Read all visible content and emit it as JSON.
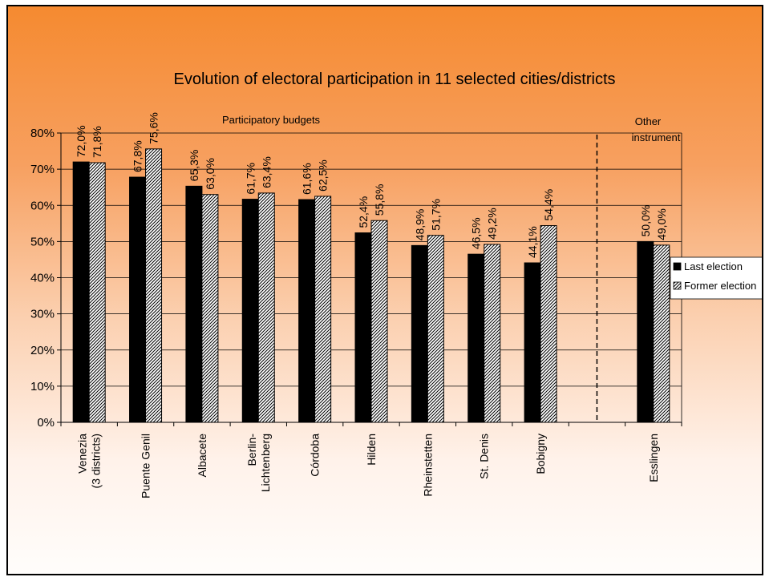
{
  "chart_data": {
    "type": "bar",
    "title": "Evolution of electoral participation in 11 selected cities/districts",
    "categories": [
      "Venezia\n(3 districts)",
      "Puente Genil",
      "Albacete",
      "Berlin-\nLichtenberg",
      "Córdoba",
      "Hilden",
      "Rheinstetten",
      "St. Denis",
      "Bobigny",
      "",
      "Esslingen"
    ],
    "series": [
      {
        "name": "Last election",
        "values": [
          72.0,
          67.8,
          65.3,
          61.7,
          61.6,
          52.4,
          48.9,
          46.5,
          44.1,
          null,
          50.0
        ],
        "labels": [
          "72,0%",
          "67,8%",
          "65,3%",
          "61,7%",
          "61,6%",
          "52,4%",
          "48,9%",
          "46,5%",
          "44,1%",
          "",
          "50,0%"
        ]
      },
      {
        "name": "Former election",
        "values": [
          71.8,
          75.6,
          63.0,
          63.4,
          62.5,
          55.8,
          51.7,
          49.2,
          54.4,
          null,
          49.0
        ],
        "labels": [
          "71,8%",
          "75,6%",
          "63,0%",
          "63,4%",
          "62,5%",
          "55,8%",
          "51,7%",
          "49,2%",
          "54,4%",
          "",
          "49,0%"
        ]
      }
    ],
    "y_ticks": [
      "0%",
      "10%",
      "20%",
      "30%",
      "40%",
      "50%",
      "60%",
      "70%",
      "80%"
    ],
    "ylim": [
      0,
      80
    ],
    "grid": true,
    "legend_position": "right",
    "annotations": {
      "group1": "Participatory budgets",
      "group2_line1": "Other",
      "group2_line2": "instrument"
    },
    "colors": {
      "last": "#000000",
      "former_hatch": "#000000",
      "former_bg": "#ffffff"
    }
  }
}
